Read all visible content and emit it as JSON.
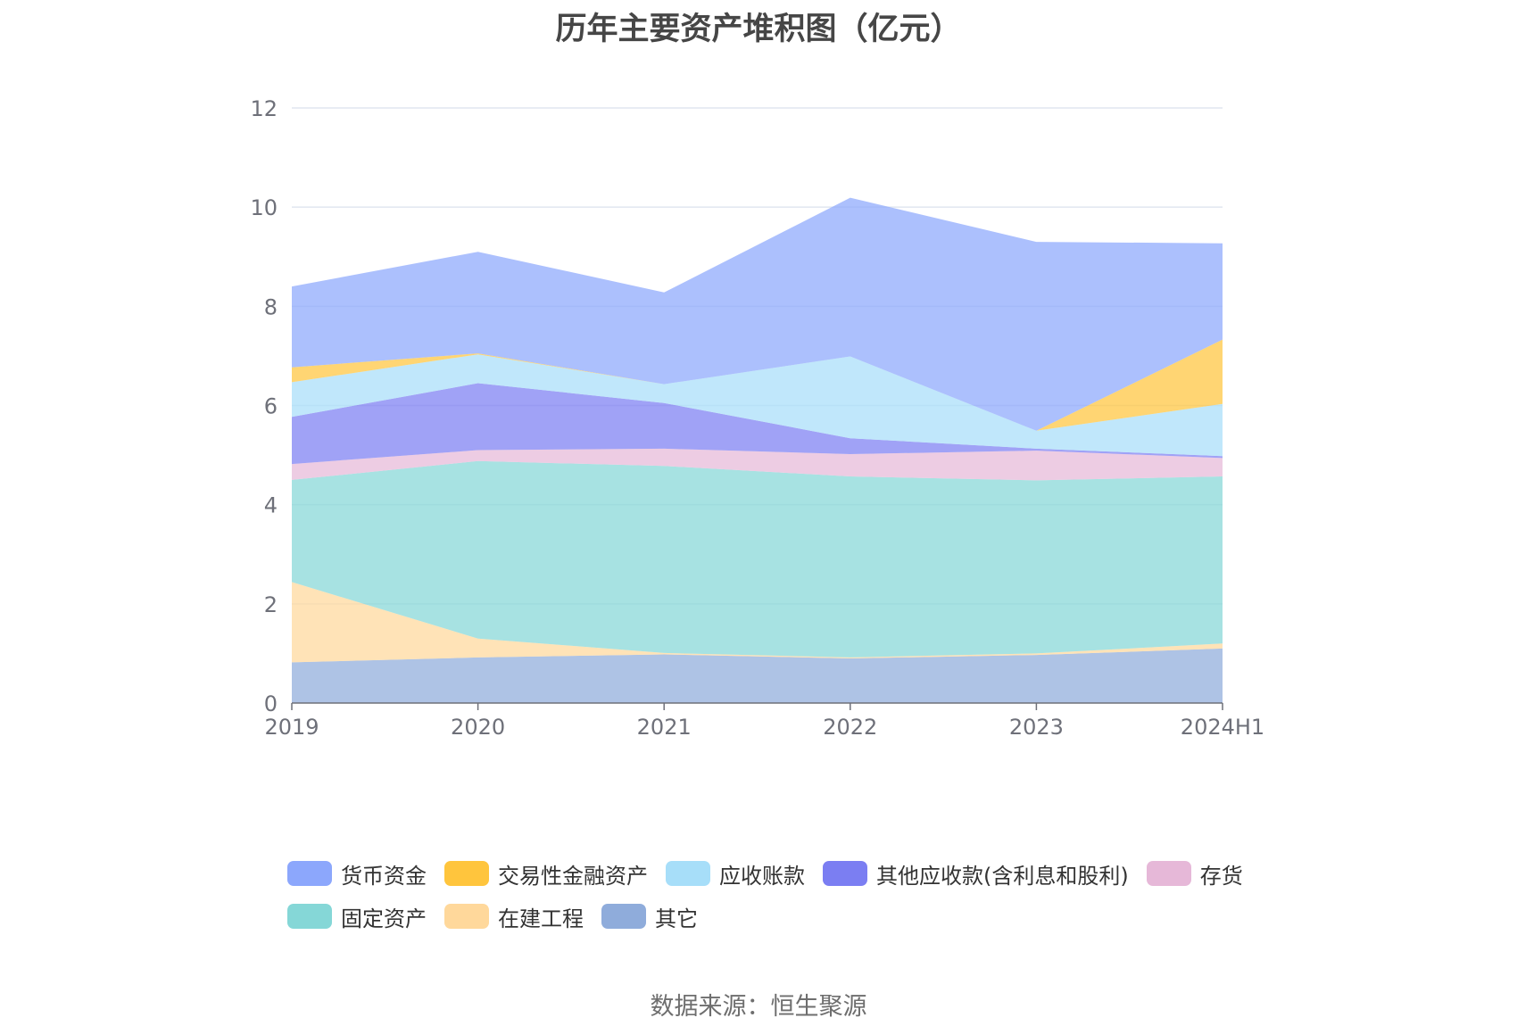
{
  "chart_data": {
    "type": "area",
    "stacked": true,
    "title": "历年主要资产堆积图（亿元）",
    "categories": [
      "2019",
      "2020",
      "2021",
      "2022",
      "2023",
      "2024H1"
    ],
    "ylim": [
      0,
      12
    ],
    "yticks": [
      0,
      2,
      4,
      6,
      8,
      10,
      12
    ],
    "grid": true,
    "legend_position": "bottom",
    "series": [
      {
        "name": "其它",
        "color": "#8facdb",
        "values": [
          0.82,
          0.92,
          0.98,
          0.9,
          0.97,
          1.1
        ]
      },
      {
        "name": "在建工程",
        "color": "#ffd89b",
        "values": [
          1.62,
          0.38,
          0.03,
          0.02,
          0.03,
          0.1
        ]
      },
      {
        "name": "固定资产",
        "color": "#85d7d7",
        "values": [
          2.06,
          3.58,
          3.77,
          3.65,
          3.49,
          3.37
        ]
      },
      {
        "name": "存货",
        "color": "#e6b8d8",
        "values": [
          0.32,
          0.22,
          0.35,
          0.45,
          0.6,
          0.37
        ]
      },
      {
        "name": "其他应收款(含利息和股利)",
        "color": "#7b7ef2",
        "values": [
          0.95,
          1.35,
          0.92,
          0.32,
          0.04,
          0.04
        ]
      },
      {
        "name": "应收账款",
        "color": "#a7def9",
        "values": [
          0.7,
          0.58,
          0.38,
          1.65,
          0.36,
          1.05
        ]
      },
      {
        "name": "交易性金融资产",
        "color": "#ffc53d",
        "values": [
          0.3,
          0.02,
          0.0,
          0.0,
          0.0,
          1.3
        ]
      },
      {
        "name": "货币资金",
        "color": "#8ca7fc",
        "values": [
          1.63,
          2.05,
          1.85,
          3.2,
          3.81,
          1.94
        ]
      }
    ]
  },
  "legend_rows": [
    [
      "货币资金",
      "交易性金融资产",
      "应收账款",
      "其他应收款(含利息和股利)",
      "存货"
    ],
    [
      "固定资产",
      "在建工程",
      "其它"
    ]
  ],
  "source_note": "数据来源：恒生聚源"
}
